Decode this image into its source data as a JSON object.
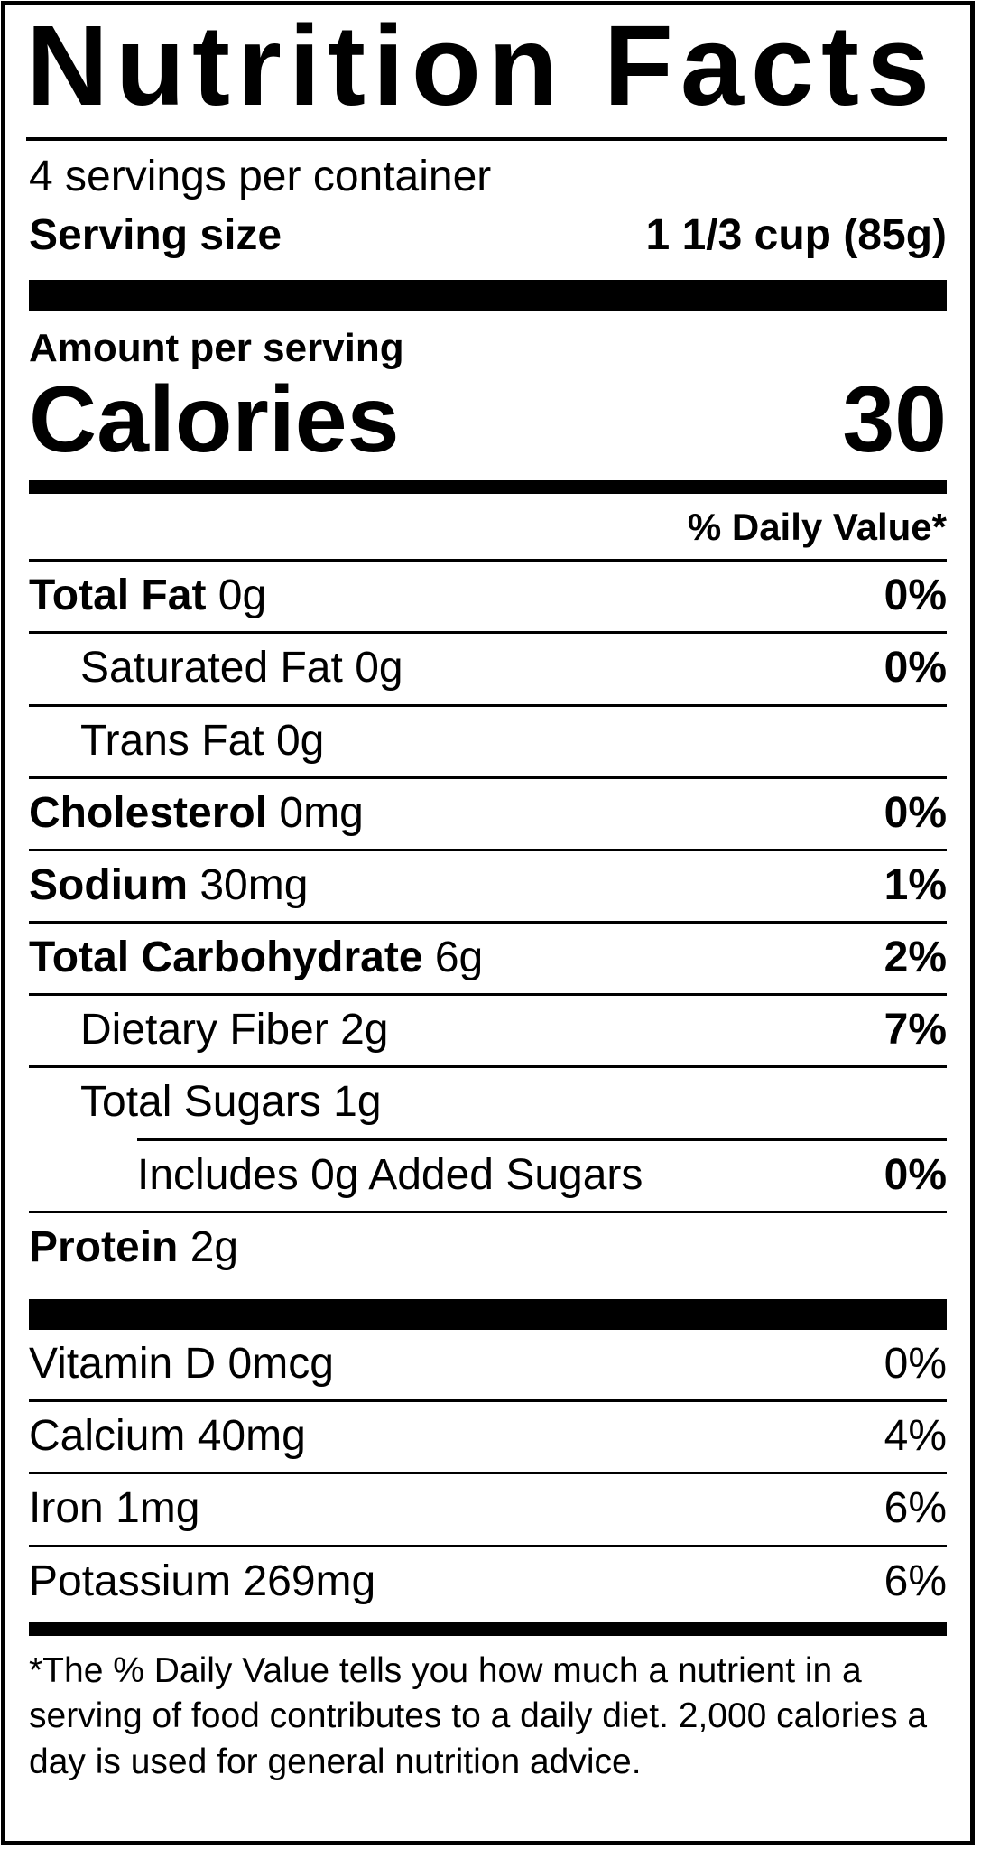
{
  "label": {
    "title": "Nutrition Facts",
    "servings_per_container": "4 servings per container",
    "serving_size_label": "Serving size",
    "serving_size_value": "1 1/3 cup (85g)",
    "amount_per_serving": "Amount per serving",
    "calories_label": "Calories",
    "calories_value": "30",
    "daily_value_header": "% Daily Value*",
    "nutrients": [
      {
        "name": "Total Fat",
        "amount": "0g",
        "dv": "0%"
      },
      {
        "name": "Saturated Fat",
        "amount": "0g",
        "dv": "0%"
      },
      {
        "name": "Trans Fat",
        "amount": "0g",
        "dv": ""
      },
      {
        "name": "Cholesterol",
        "amount": "0mg",
        "dv": "0%"
      },
      {
        "name": "Sodium",
        "amount": "30mg",
        "dv": "1%"
      },
      {
        "name": "Total Carbohydrate",
        "amount": "6g",
        "dv": "2%"
      },
      {
        "name": "Dietary Fiber",
        "amount": "2g",
        "dv": "7%"
      },
      {
        "name": "Total Sugars",
        "amount": "1g",
        "dv": ""
      },
      {
        "name": "Includes 0g Added Sugars",
        "amount": "",
        "dv": "0%"
      },
      {
        "name": "Protein",
        "amount": "2g",
        "dv": ""
      }
    ],
    "vitamins": [
      {
        "name": "Vitamin D",
        "amount": "0mcg",
        "dv": "0%"
      },
      {
        "name": "Calcium",
        "amount": "40mg",
        "dv": "4%"
      },
      {
        "name": "Iron",
        "amount": "1mg",
        "dv": "6%"
      },
      {
        "name": "Potassium",
        "amount": "269mg",
        "dv": "6%"
      }
    ],
    "footnote": "*The % Daily Value tells you how much a nutrient in a serving of food contributes to a daily diet. 2,000 calories a day is used for general nutrition advice.",
    "colors": {
      "ink": "#000000",
      "paper": "#ffffff"
    }
  }
}
